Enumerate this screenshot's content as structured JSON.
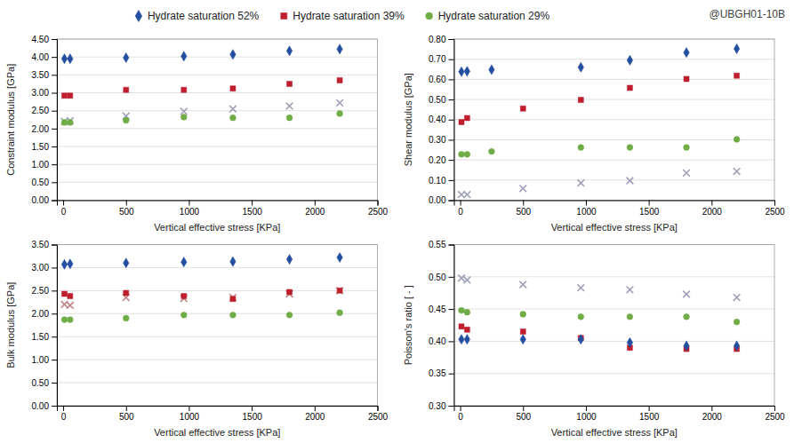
{
  "chart_data": [
    {
      "type": "scatter",
      "annotation": "@UBGH01-10B",
      "legend": "top",
      "grid": true,
      "xlabel": "Vertical effective stress [KPa]",
      "ylabel": "Constraint modulus [GPa]",
      "xlim": [
        -50,
        2500
      ],
      "xticks": [
        0,
        500,
        1000,
        1500,
        2000,
        2500
      ],
      "ylim": [
        0.0,
        4.5
      ],
      "yticks": [
        {
          "value": 0.0,
          "label": "0.00"
        },
        {
          "value": 0.5,
          "label": "0.50"
        },
        {
          "value": 1.0,
          "label": "1.00"
        },
        {
          "value": 1.5,
          "label": "1.50"
        },
        {
          "value": 2.0,
          "label": "2.00"
        },
        {
          "value": 2.5,
          "label": "2.50"
        },
        {
          "value": 3.0,
          "label": "3.00"
        },
        {
          "value": 3.5,
          "label": "3.50"
        },
        {
          "value": 4.0,
          "label": "4.00"
        },
        {
          "value": 4.5,
          "label": "4.50"
        }
      ],
      "series": [
        {
          "name": "Hydrate saturation 52%",
          "color": "#244FA0",
          "marker": "diamond",
          "x": [
            10,
            55,
            500,
            960,
            1350,
            1800,
            2200
          ],
          "values": [
            3.95,
            3.95,
            3.98,
            4.02,
            4.07,
            4.17,
            4.22
          ]
        },
        {
          "name": "Hydrate saturation 39%",
          "color": "#BE1E2D",
          "marker": "square",
          "x": [
            10,
            55,
            500,
            960,
            1350,
            1800,
            2200
          ],
          "values": [
            2.92,
            2.92,
            3.08,
            3.08,
            3.12,
            3.25,
            3.35
          ]
        },
        {
          "name": "Hydrate saturation 29%",
          "color": "#70AD47",
          "marker": "circle",
          "x": [
            10,
            55,
            500,
            960,
            1350,
            1800,
            2200
          ],
          "values": [
            2.17,
            2.17,
            2.23,
            2.32,
            2.3,
            2.3,
            2.42
          ]
        },
        {
          "color": "#A0A0B8",
          "marker": "x",
          "x": [
            10,
            55,
            500,
            960,
            1350,
            1800,
            2200
          ],
          "values": [
            2.2,
            2.22,
            2.35,
            2.48,
            2.55,
            2.63,
            2.72
          ]
        }
      ]
    },
    {
      "type": "scatter",
      "grid": true,
      "xlabel": "Vertical effective stress [KPa]",
      "ylabel": "Shear modulus [GPa]",
      "xlim": [
        -50,
        2500
      ],
      "xticks": [
        0,
        500,
        1000,
        1500,
        2000,
        2500
      ],
      "ylim": [
        0.0,
        0.8
      ],
      "yticks": [
        {
          "value": 0.0,
          "label": "0.00"
        },
        {
          "value": 0.1,
          "label": "0.10"
        },
        {
          "value": 0.2,
          "label": "0.20"
        },
        {
          "value": 0.3,
          "label": "0.30"
        },
        {
          "value": 0.4,
          "label": "0.40"
        },
        {
          "value": 0.5,
          "label": "0.50"
        },
        {
          "value": 0.6,
          "label": "0.60"
        },
        {
          "value": 0.7,
          "label": "0.70"
        },
        {
          "value": 0.8,
          "label": "0.80"
        }
      ],
      "series": [
        {
          "color": "#244FA0",
          "marker": "diamond",
          "x": [
            10,
            55,
            250,
            960,
            1350,
            1800,
            2200
          ],
          "values": [
            0.638,
            0.64,
            0.648,
            0.66,
            0.695,
            0.733,
            0.752
          ]
        },
        {
          "color": "#BE1E2D",
          "marker": "square",
          "x": [
            10,
            55,
            500,
            960,
            1350,
            1800,
            2200
          ],
          "values": [
            0.388,
            0.408,
            0.455,
            0.498,
            0.558,
            0.602,
            0.618
          ]
        },
        {
          "color": "#70AD47",
          "marker": "circle",
          "x": [
            10,
            55,
            250,
            960,
            1350,
            1800,
            2200
          ],
          "values": [
            0.228,
            0.228,
            0.242,
            0.262,
            0.262,
            0.262,
            0.302
          ]
        },
        {
          "color": "#A0A0B8",
          "marker": "x",
          "x": [
            10,
            55,
            500,
            960,
            1350,
            1800,
            2200
          ],
          "values": [
            0.028,
            0.028,
            0.058,
            0.085,
            0.097,
            0.135,
            0.143
          ]
        }
      ]
    },
    {
      "type": "scatter",
      "grid": true,
      "xlabel": "Vertical effective stress [KPa]",
      "ylabel": "Bulk modulus [GPa]",
      "xlim": [
        -50,
        2500
      ],
      "xticks": [
        0,
        500,
        1000,
        1500,
        2000,
        2500
      ],
      "ylim": [
        0.0,
        3.5
      ],
      "yticks": [
        {
          "value": 0.0,
          "label": "0.00"
        },
        {
          "value": 0.5,
          "label": "0.50"
        },
        {
          "value": 1.0,
          "label": "1.00"
        },
        {
          "value": 1.5,
          "label": "1.50"
        },
        {
          "value": 2.0,
          "label": "2.00"
        },
        {
          "value": 2.5,
          "label": "2.50"
        },
        {
          "value": 3.0,
          "label": "3.00"
        },
        {
          "value": 3.5,
          "label": "3.50"
        }
      ],
      "series": [
        {
          "color": "#244FA0",
          "marker": "diamond",
          "x": [
            10,
            55,
            500,
            960,
            1350,
            1800,
            2200
          ],
          "values": [
            3.07,
            3.08,
            3.1,
            3.12,
            3.13,
            3.18,
            3.22
          ]
        },
        {
          "color": "#BE1E2D",
          "marker": "square",
          "x": [
            10,
            55,
            500,
            960,
            1350,
            1800,
            2200
          ],
          "values": [
            2.43,
            2.38,
            2.45,
            2.38,
            2.32,
            2.47,
            2.5
          ]
        },
        {
          "color": "#70AD47",
          "marker": "circle",
          "x": [
            10,
            55,
            500,
            960,
            1350,
            1800,
            2200
          ],
          "values": [
            1.87,
            1.87,
            1.9,
            1.97,
            1.97,
            1.97,
            2.02
          ]
        },
        {
          "color": "#C08080",
          "marker": "x",
          "x": [
            10,
            55,
            500,
            960,
            1350,
            1800,
            2200
          ],
          "values": [
            2.2,
            2.18,
            2.35,
            2.33,
            2.35,
            2.43,
            2.5
          ]
        }
      ]
    },
    {
      "type": "scatter",
      "grid": true,
      "xlabel": "Vertical effective stress [KPa]",
      "ylabel": "Poisson's ratio [ - ]",
      "xlim": [
        -50,
        2500
      ],
      "xticks": [
        0,
        500,
        1000,
        1500,
        2000,
        2500
      ],
      "ylim": [
        0.3,
        0.55
      ],
      "yticks": [
        {
          "value": 0.3,
          "label": "0.30"
        },
        {
          "value": 0.35,
          "label": "0.35"
        },
        {
          "value": 0.4,
          "label": "0.40"
        },
        {
          "value": 0.45,
          "label": "0.45"
        },
        {
          "value": 0.5,
          "label": "0.50"
        },
        {
          "value": 0.55,
          "label": "0.55"
        }
      ],
      "series": [
        {
          "color": "#244FA0",
          "marker": "diamond",
          "x": [
            10,
            55,
            500,
            960,
            1350,
            1800,
            2200
          ],
          "values": [
            0.403,
            0.403,
            0.403,
            0.403,
            0.398,
            0.393,
            0.393
          ]
        },
        {
          "color": "#BE1E2D",
          "marker": "square",
          "x": [
            10,
            55,
            500,
            960,
            1350,
            1800,
            2200
          ],
          "values": [
            0.423,
            0.418,
            0.415,
            0.405,
            0.39,
            0.388,
            0.388
          ]
        },
        {
          "color": "#70AD47",
          "marker": "circle",
          "x": [
            10,
            55,
            500,
            960,
            1350,
            1800,
            2200
          ],
          "values": [
            0.448,
            0.445,
            0.442,
            0.438,
            0.438,
            0.438,
            0.43
          ]
        },
        {
          "color": "#A0A0B8",
          "marker": "x",
          "x": [
            10,
            55,
            500,
            960,
            1350,
            1800,
            2200
          ],
          "values": [
            0.498,
            0.495,
            0.488,
            0.483,
            0.48,
            0.473,
            0.468
          ]
        }
      ]
    }
  ]
}
